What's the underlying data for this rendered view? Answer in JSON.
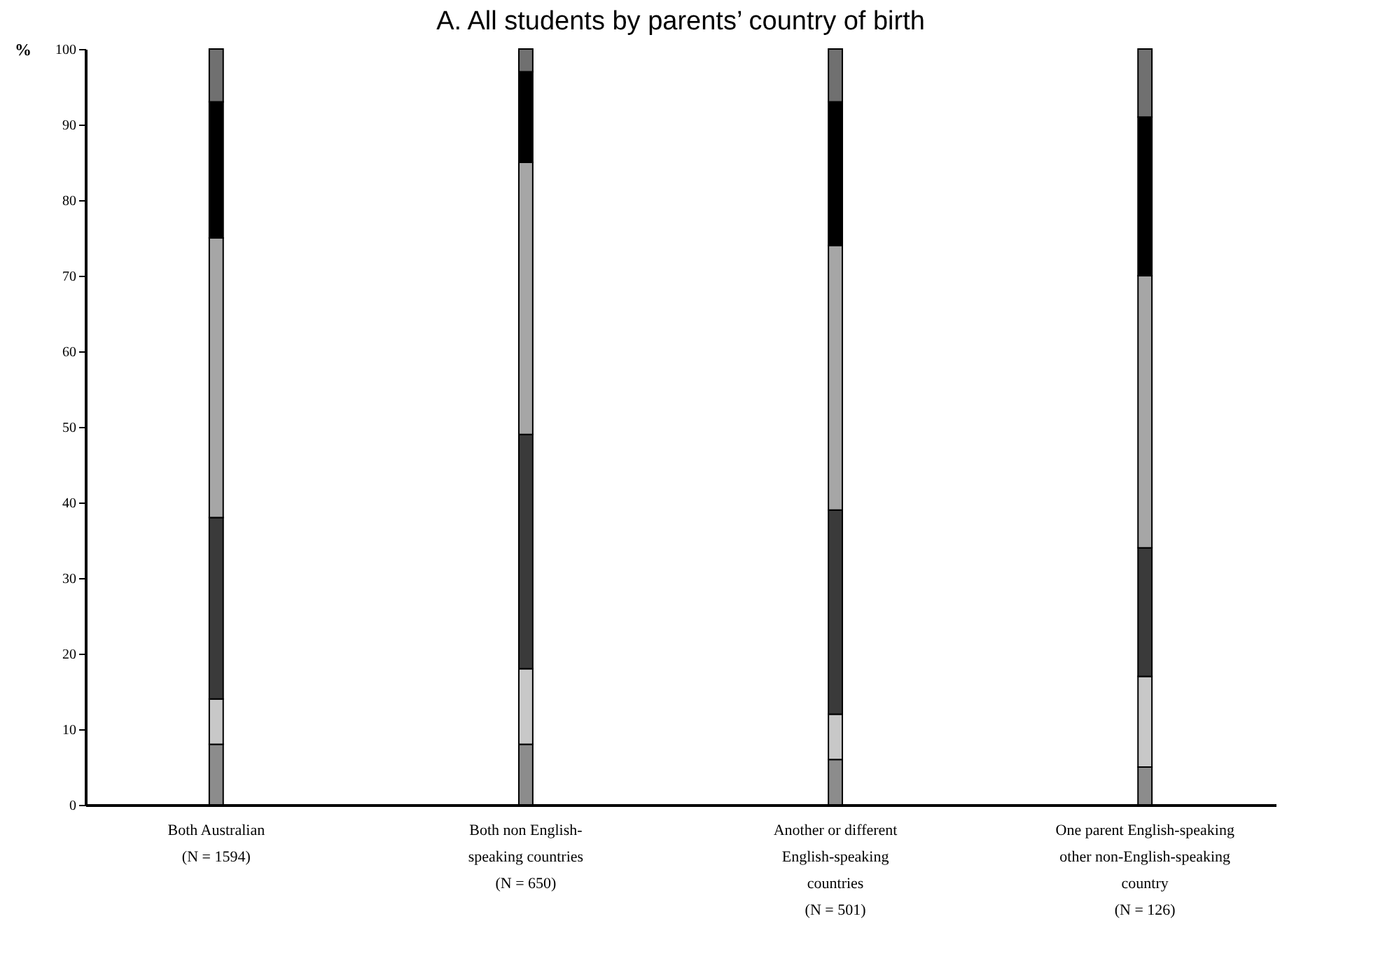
{
  "chart_data": {
    "type": "bar",
    "title": "A.  All students by parents’ country of birth",
    "ylabel": "%",
    "categories": [
      "Both Australian\n(N = 1594)",
      "Both non English-\nspeaking countries\n(N = 650)",
      "Another or different\nEnglish-speaking\ncountries\n(N = 501)",
      "One parent English-speaking\nother non-English-speaking\ncountry\n(N = 126)"
    ],
    "stacked": true,
    "series": [
      {
        "color": "#8c8c8c",
        "values": [
          8,
          8,
          6,
          5
        ]
      },
      {
        "color": "#c8c8c8",
        "values": [
          6,
          10,
          6,
          12
        ]
      },
      {
        "color": "#3a3a3a",
        "values": [
          24,
          31,
          27,
          17
        ]
      },
      {
        "color": "#a6a6a6",
        "values": [
          37,
          36,
          35,
          36
        ]
      },
      {
        "color": "#000000",
        "values": [
          18,
          12,
          19,
          21
        ]
      },
      {
        "color": "#707070",
        "values": [
          7,
          3,
          7,
          9
        ]
      }
    ],
    "ylim": [
      0,
      100
    ],
    "yticks": [
      0,
      10,
      20,
      30,
      40,
      50,
      60,
      70,
      80,
      90,
      100
    ],
    "grid": false,
    "legend": false
  }
}
